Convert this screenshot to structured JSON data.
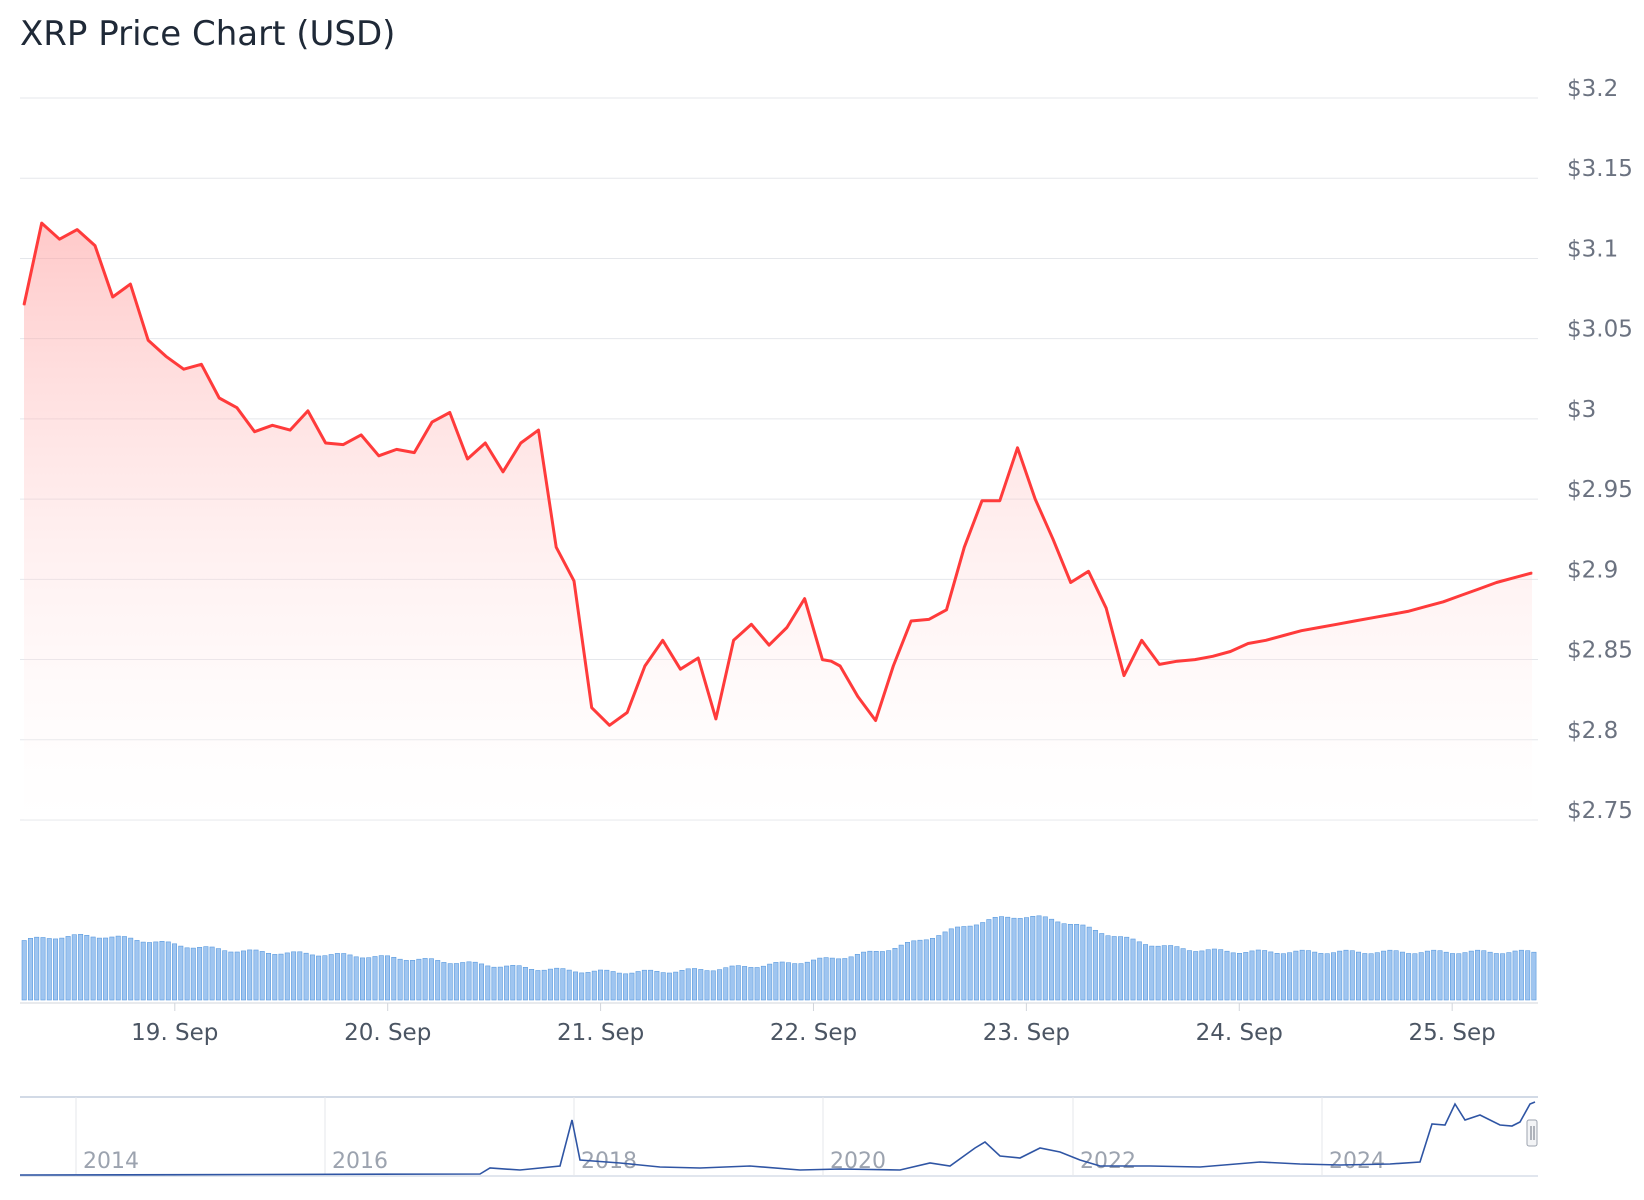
{
  "chart_data": {
    "type": "line",
    "title": "XRP Price Chart (USD)",
    "currency": "USD",
    "ylim": [
      2.75,
      3.2
    ],
    "y_ticks": [
      "$2.75",
      "$2.8",
      "$2.85",
      "$2.9",
      "$2.95",
      "$3",
      "$3.05",
      "$3.1",
      "$3.15",
      "$3.2"
    ],
    "x_ticks": [
      "19. Sep",
      "20. Sep",
      "21. Sep",
      "22. Sep",
      "23. Sep",
      "24. Sep",
      "25. Sep"
    ],
    "x_range": [
      "2025-09-18 07:00",
      "2025-09-25 09:00"
    ],
    "grid": true,
    "colors": {
      "line": "#ff3b3b",
      "area": "#ffcaca",
      "volume": "#9fc5f0",
      "volume_edge": "#5b9bdf",
      "navigator": "#2f55a4"
    },
    "series": [
      {
        "x": [
          "2025-09-18 07:00",
          "2025-09-18 09:00",
          "2025-09-18 11:00",
          "2025-09-18 13:00",
          "2025-09-18 15:00",
          "2025-09-18 17:00",
          "2025-09-18 19:00",
          "2025-09-18 21:00",
          "2025-09-18 23:00",
          "2025-09-19 01:00",
          "2025-09-19 03:00",
          "2025-09-19 05:00",
          "2025-09-19 07:00",
          "2025-09-19 09:00",
          "2025-09-19 11:00",
          "2025-09-19 13:00",
          "2025-09-19 15:00",
          "2025-09-19 17:00",
          "2025-09-19 19:00",
          "2025-09-19 21:00",
          "2025-09-19 23:00",
          "2025-09-20 01:00",
          "2025-09-20 03:00",
          "2025-09-20 05:00",
          "2025-09-20 07:00",
          "2025-09-20 09:00",
          "2025-09-20 11:00",
          "2025-09-20 13:00",
          "2025-09-20 15:00",
          "2025-09-20 17:00",
          "2025-09-20 19:00",
          "2025-09-20 21:00",
          "2025-09-20 23:00",
          "2025-09-21 01:00",
          "2025-09-21 03:00",
          "2025-09-21 05:00",
          "2025-09-21 07:00",
          "2025-09-21 09:00",
          "2025-09-21 11:00",
          "2025-09-21 13:00",
          "2025-09-21 15:00",
          "2025-09-21 17:00",
          "2025-09-21 19:00",
          "2025-09-21 21:00",
          "2025-09-21 23:00",
          "2025-09-22 01:00",
          "2025-09-22 02:00",
          "2025-09-22 03:00",
          "2025-09-22 05:00",
          "2025-09-22 07:00",
          "2025-09-22 09:00",
          "2025-09-22 11:00",
          "2025-09-22 13:00",
          "2025-09-22 15:00",
          "2025-09-22 17:00",
          "2025-09-22 19:00",
          "2025-09-22 21:00",
          "2025-09-22 23:00",
          "2025-09-23 01:00",
          "2025-09-23 03:00",
          "2025-09-23 05:00",
          "2025-09-23 07:00",
          "2025-09-23 09:00",
          "2025-09-23 11:00",
          "2025-09-23 13:00",
          "2025-09-23 15:00",
          "2025-09-23 17:00",
          "2025-09-23 19:00",
          "2025-09-23 21:00",
          "2025-09-23 23:00",
          "2025-09-24 01:00",
          "2025-09-24 03:00",
          "2025-09-24 05:00",
          "2025-09-24 07:00",
          "2025-09-24 09:00",
          "2025-09-24 11:00",
          "2025-09-24 13:00",
          "2025-09-24 15:00",
          "2025-09-24 17:00",
          "2025-09-24 19:00",
          "2025-09-24 21:00",
          "2025-09-24 23:00",
          "2025-09-25 01:00",
          "2025-09-25 03:00",
          "2025-09-25 05:00",
          "2025-09-25 07:00",
          "2025-09-25 09:00"
        ],
        "y": [
          3.071,
          3.122,
          3.112,
          3.118,
          3.108,
          3.076,
          3.084,
          3.049,
          3.039,
          3.031,
          3.034,
          3.013,
          3.007,
          2.992,
          2.996,
          2.993,
          3.005,
          2.985,
          2.984,
          2.99,
          2.977,
          2.981,
          2.979,
          2.998,
          3.004,
          2.975,
          2.985,
          2.967,
          2.985,
          2.993,
          2.92,
          2.899,
          2.82,
          2.809,
          2.817,
          2.846,
          2.862,
          2.844,
          2.851,
          2.813,
          2.862,
          2.872,
          2.859,
          2.87,
          2.888,
          2.85,
          2.849,
          2.846,
          2.827,
          2.812,
          2.846,
          2.874,
          2.875,
          2.881,
          2.92,
          2.949,
          2.949,
          2.982,
          2.95,
          2.925,
          2.898,
          2.905,
          2.882,
          2.84,
          2.862,
          2.847,
          2.849,
          2.85,
          2.852,
          2.855,
          2.86,
          2.862,
          2.865,
          2.868,
          2.87,
          2.872,
          2.874,
          2.876,
          2.878,
          2.88,
          2.883,
          2.886,
          2.89,
          2.894,
          2.898,
          2.901,
          2.904
        ]
      }
    ],
    "navigator": {
      "x_ticks": [
        "2014",
        "2016",
        "2018",
        "2020",
        "2022",
        "2024"
      ]
    }
  }
}
